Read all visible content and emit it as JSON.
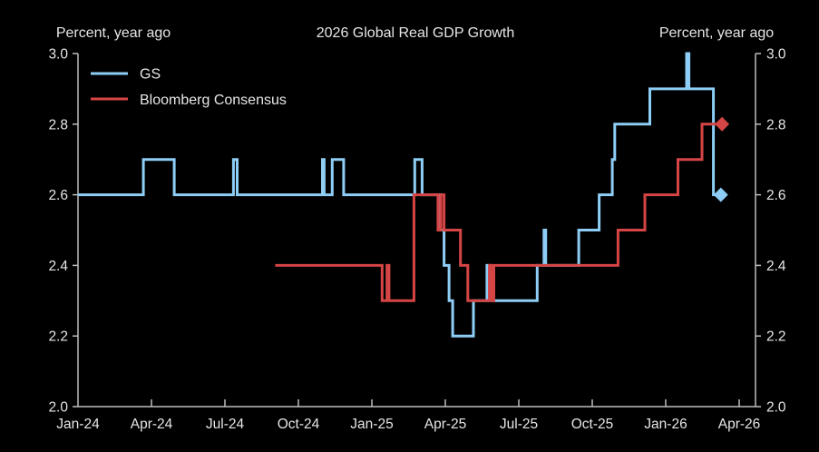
{
  "chart_data": {
    "type": "line",
    "title": "2026 Global Real GDP Growth",
    "ylabel_left": "Percent, year ago",
    "ylabel_right": "Percent, year ago",
    "xlabel": "",
    "x_unit": "months since Jan-24",
    "xlim": [
      0,
      27.5
    ],
    "ylim": [
      2.0,
      3.0
    ],
    "yticks": [
      2.0,
      2.2,
      2.4,
      2.6,
      2.8,
      3.0
    ],
    "ytick_labels": [
      "2.0",
      "2.2",
      "2.4",
      "2.6",
      "2.8",
      "3.0"
    ],
    "xticks": [
      0,
      3,
      6,
      9,
      12,
      15,
      18,
      21,
      24,
      27
    ],
    "xtick_labels": [
      "Jan-24",
      "Apr-24",
      "Jul-24",
      "Oct-24",
      "Jan-25",
      "Apr-25",
      "Jul-25",
      "Oct-25",
      "Jan-26",
      "Apr-26"
    ],
    "grid": false,
    "legend": {
      "position": "top-left"
    },
    "series": [
      {
        "name": "GS",
        "color": "#8ecdf5",
        "step": true,
        "points": [
          [
            0,
            2.6
          ],
          [
            2.67,
            2.7
          ],
          [
            3.93,
            2.6
          ],
          [
            6.35,
            2.7
          ],
          [
            6.5,
            2.6
          ],
          [
            9.98,
            2.7
          ],
          [
            10.05,
            2.6
          ],
          [
            10.38,
            2.7
          ],
          [
            10.85,
            2.6
          ],
          [
            13.75,
            2.7
          ],
          [
            14.05,
            2.6
          ],
          [
            14.8,
            2.5
          ],
          [
            14.95,
            2.4
          ],
          [
            15.15,
            2.3
          ],
          [
            15.3,
            2.2
          ],
          [
            16.15,
            2.3
          ],
          [
            16.7,
            2.4
          ],
          [
            16.82,
            2.3
          ],
          [
            18.75,
            2.4
          ],
          [
            19.03,
            2.5
          ],
          [
            19.1,
            2.4
          ],
          [
            20.45,
            2.5
          ],
          [
            21.28,
            2.6
          ],
          [
            21.82,
            2.7
          ],
          [
            21.92,
            2.8
          ],
          [
            23.35,
            2.9
          ],
          [
            24.85,
            3.0
          ],
          [
            24.95,
            2.9
          ],
          [
            25.95,
            2.6
          ],
          [
            26.25,
            2.6
          ]
        ],
        "end_marker": {
          "x": 26.25,
          "y": 2.6,
          "shape": "diamond"
        }
      },
      {
        "name": "Bloomberg Consensus",
        "color": "#d64545",
        "step": true,
        "points": [
          [
            8.05,
            2.4
          ],
          [
            12.42,
            2.3
          ],
          [
            12.62,
            2.4
          ],
          [
            12.7,
            2.3
          ],
          [
            13.72,
            2.6
          ],
          [
            14.7,
            2.5
          ],
          [
            14.82,
            2.6
          ],
          [
            14.95,
            2.5
          ],
          [
            15.62,
            2.4
          ],
          [
            15.92,
            2.3
          ],
          [
            16.8,
            2.4
          ],
          [
            16.9,
            2.3
          ],
          [
            16.98,
            2.4
          ],
          [
            22.05,
            2.5
          ],
          [
            23.15,
            2.6
          ],
          [
            24.5,
            2.7
          ],
          [
            25.48,
            2.8
          ],
          [
            26.3,
            2.8
          ]
        ],
        "end_marker": {
          "x": 26.3,
          "y": 2.8,
          "shape": "diamond"
        }
      }
    ]
  }
}
